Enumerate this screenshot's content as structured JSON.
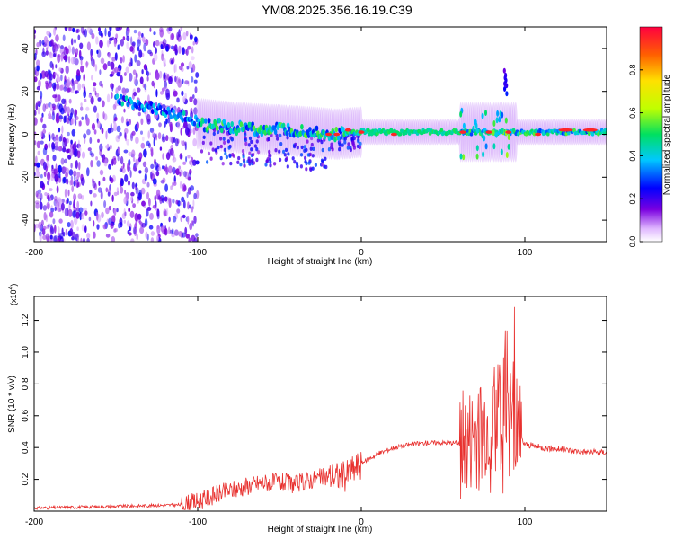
{
  "figure": {
    "title": "YM08.2025.356.16.19.C39"
  },
  "chart_data": [
    {
      "type": "heatmap",
      "xlabel": "Height of straight line (km)",
      "ylabel": "Frequency (Hz)",
      "xlim": [
        -200,
        150
      ],
      "ylim": [
        -50,
        50
      ],
      "xticks": [
        -200,
        -100,
        0,
        100
      ],
      "yticks": [
        -40,
        -20,
        0,
        20,
        40
      ],
      "colorbar": {
        "label": "Normalized spectral amplitude",
        "range": [
          0,
          1
        ],
        "ticks": [
          "0.0",
          "0.2",
          "0.4",
          "0.6",
          "0.8"
        ],
        "colormap": "rainbow"
      },
      "features": [
        {
          "name": "noisy-region",
          "x_range": [
            -200,
            -100
          ],
          "freq_range": [
            -50,
            50
          ],
          "amplitude": 0.15
        },
        {
          "name": "ridge-descending",
          "x": [
            -150,
            -125,
            -100
          ],
          "freq": [
            16,
            12,
            6
          ],
          "amplitude": 0.35
        },
        {
          "name": "main-band",
          "x": [
            -100,
            -75,
            -50,
            -30,
            -15,
            0,
            50,
            150
          ],
          "freq": [
            5,
            3,
            2,
            1,
            0,
            1,
            1,
            1
          ],
          "amplitude": 0.45
        },
        {
          "name": "hot-spots",
          "x": [
            -20,
            -15,
            -8,
            0,
            20,
            62,
            78,
            90,
            108,
            125,
            140
          ],
          "freq": [
            0,
            0,
            2,
            1,
            0,
            1,
            1,
            1,
            0,
            2,
            2
          ],
          "amplitude": 0.95
        },
        {
          "name": "upper-branch",
          "x": [
            87,
            88,
            89
          ],
          "freq": [
            30,
            25,
            20
          ],
          "amplitude": 0.2
        }
      ]
    },
    {
      "type": "line",
      "xlabel": "Height of straight line (km)",
      "ylabel": "SNR (10 * v/v)",
      "multiplier": "(x10",
      "multiplier_exp": "4",
      "multiplier_close": ")",
      "xlim": [
        -200,
        150
      ],
      "ylim": [
        0,
        1.35
      ],
      "xticks": [
        -200,
        -100,
        0,
        100
      ],
      "yticks": [
        "0.2",
        "0.4",
        "0.6",
        "0.8",
        "1.0",
        "1.2"
      ],
      "color": "#e8302e",
      "series": [
        {
          "name": "SNR",
          "x": [
            -200,
            -150,
            -110,
            -100,
            -90,
            -80,
            -70,
            -60,
            -50,
            -40,
            -30,
            -20,
            -10,
            0,
            10,
            20,
            30,
            40,
            50,
            60,
            65,
            70,
            75,
            80,
            85,
            90,
            95,
            100,
            110,
            120,
            130,
            140,
            150
          ],
          "values": [
            0.02,
            0.03,
            0.04,
            0.06,
            0.1,
            0.13,
            0.16,
            0.18,
            0.18,
            0.17,
            0.2,
            0.22,
            0.22,
            0.3,
            0.36,
            0.4,
            0.42,
            0.43,
            0.43,
            0.43,
            0.43,
            0.5,
            0.55,
            0.6,
            0.6,
            0.75,
            0.5,
            0.42,
            0.4,
            0.39,
            0.38,
            0.37,
            0.37
          ]
        }
      ]
    }
  ]
}
